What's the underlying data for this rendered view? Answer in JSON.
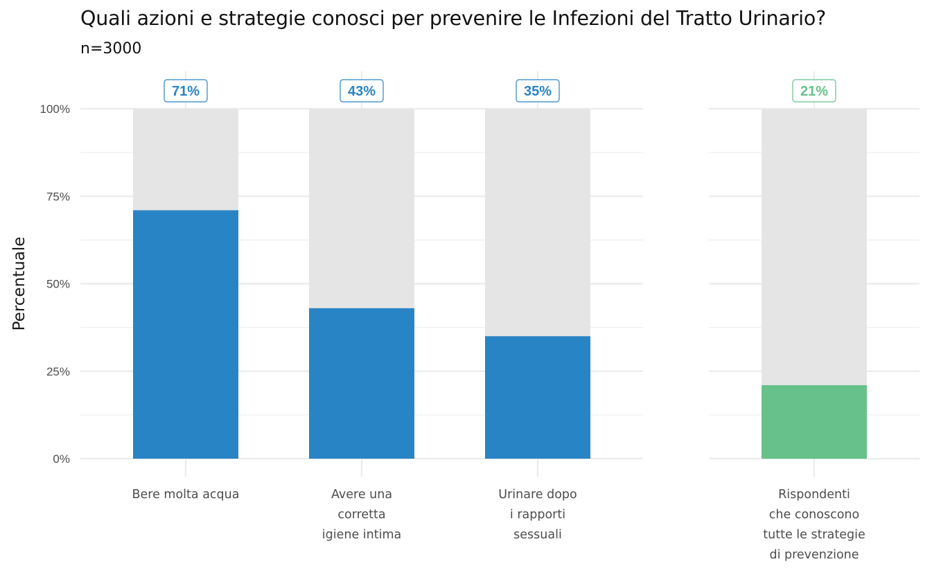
{
  "header": {
    "title": "Quali azioni e strategie conosci per prevenire le Infezioni del Tratto Urinario?",
    "subtitle": "n=3000"
  },
  "colors": {
    "blue": "#2984C5",
    "green": "#66C18A",
    "background_bar": "#E5E5E5",
    "grid": "#EBEBEB",
    "text": "#4D4D4D"
  },
  "chart_data": [
    {
      "type": "bar",
      "categories": [
        [
          "Bere molta acqua"
        ],
        [
          "Avere una",
          "corretta",
          "igiene intima"
        ],
        [
          "Urinare dopo",
          "i rapporti",
          "sessuali"
        ]
      ],
      "values": [
        71,
        43,
        35
      ],
      "labels": [
        "71%",
        "43%",
        "35%"
      ],
      "color": "#2984C5",
      "ylabel": "Percentuale",
      "ylim": [
        0,
        100
      ],
      "yticks": [
        0,
        25,
        50,
        75,
        100
      ],
      "ytick_labels": [
        "0%",
        "25%",
        "50%",
        "75%",
        "100%"
      ],
      "grid": true,
      "stacked_background": 100
    },
    {
      "type": "bar",
      "categories": [
        [
          "Rispondenti",
          "che conoscono",
          "tutte le strategie",
          "di prevenzione"
        ]
      ],
      "values": [
        21
      ],
      "labels": [
        "21%"
      ],
      "color": "#66C18A",
      "ylim": [
        0,
        100
      ],
      "grid": true,
      "stacked_background": 100
    }
  ]
}
